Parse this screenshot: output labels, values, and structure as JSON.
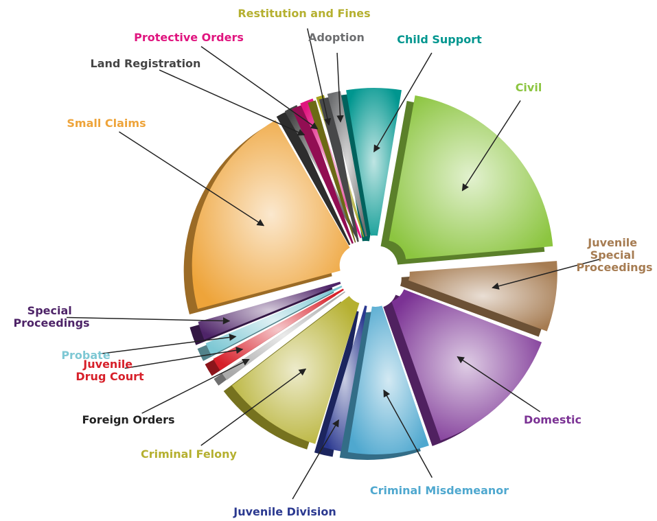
{
  "chart_data": {
    "type": "pie",
    "categories": [
      "Child Support",
      "Civil",
      "Juvenile Special Proceedings",
      "Domestic",
      "Criminal Misdemeanor",
      "Juvenile Division",
      "Criminal Felony",
      "Foreign Orders",
      "Juvenile Drug Court",
      "Probate",
      "Special Proceedings",
      "Small Claims",
      "Land Registration",
      "Protective Orders",
      "Restitution and Fines",
      "Adoption"
    ],
    "values": [
      5.5,
      21,
      7,
      14,
      8,
      2,
      10,
      1,
      1.5,
      1.5,
      2,
      21,
      1.5,
      1.5,
      1,
      1.5
    ],
    "colors": [
      "#00968f",
      "#8cc540",
      "#a67c52",
      "#7b3294",
      "#4fa8cf",
      "#2b3990",
      "#b5b030",
      "#aaaaaa",
      "#d7202a",
      "#7ec8d4",
      "#4e2468",
      "#eea43a",
      "#454545",
      "#e0157f",
      "#a6a320",
      "#6d6e70"
    ],
    "label_colors": [
      "#00968f",
      "#8cc540",
      "#a67c52",
      "#7b3294",
      "#4fa8cf",
      "#2b3990",
      "#b5b030",
      "#222222",
      "#d7202a",
      "#7ec8d4",
      "#4e2468",
      "#eea43a",
      "#454545",
      "#e0157f",
      "#b5b030",
      "#6d6e70"
    ]
  }
}
